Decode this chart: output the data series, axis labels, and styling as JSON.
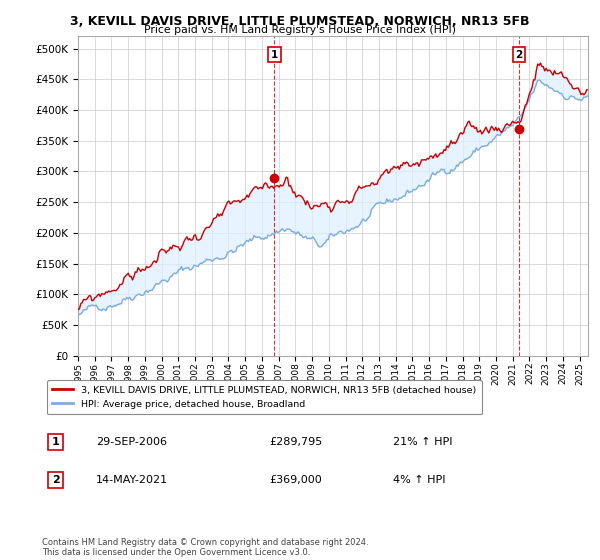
{
  "title": "3, KEVILL DAVIS DRIVE, LITTLE PLUMSTEAD, NORWICH, NR13 5FB",
  "subtitle": "Price paid vs. HM Land Registry's House Price Index (HPI)",
  "legend_line1": "3, KEVILL DAVIS DRIVE, LITTLE PLUMSTEAD, NORWICH, NR13 5FB (detached house)",
  "legend_line2": "HPI: Average price, detached house, Broadland",
  "annotation1_label": "1",
  "annotation1_date": "29-SEP-2006",
  "annotation1_price": "£289,795",
  "annotation1_hpi": "21% ↑ HPI",
  "annotation2_label": "2",
  "annotation2_date": "14-MAY-2021",
  "annotation2_price": "£369,000",
  "annotation2_hpi": "4% ↑ HPI",
  "footnote": "Contains HM Land Registry data © Crown copyright and database right 2024.\nThis data is licensed under the Open Government Licence v3.0.",
  "purchase1_x": 2006.75,
  "purchase1_y": 289795,
  "purchase2_x": 2021.37,
  "purchase2_y": 369000,
  "hpi_color": "#7aade0",
  "hpi_fill_color": "#ddeeff",
  "price_color": "#cc0000",
  "marker_color": "#cc0000",
  "ylim": [
    0,
    520000
  ],
  "xlim": [
    1995.0,
    2025.5
  ],
  "yticks": [
    0,
    50000,
    100000,
    150000,
    200000,
    250000,
    300000,
    350000,
    400000,
    450000,
    500000
  ],
  "background_color": "#ffffff",
  "grid_color": "#cccccc"
}
